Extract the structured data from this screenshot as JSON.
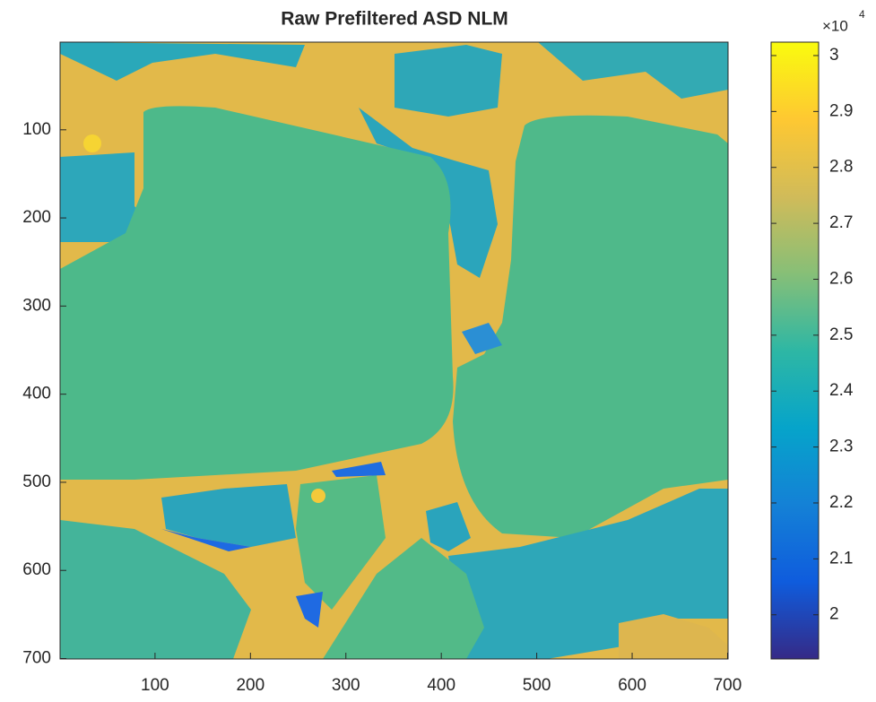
{
  "chart_data": {
    "type": "image",
    "title": "Raw Prefiltered ASD NLM",
    "xlim": [
      0.5,
      700.5
    ],
    "ylim": [
      700.5,
      0.5
    ],
    "y_reversed": true,
    "xticks": [
      100,
      200,
      300,
      400,
      500,
      600,
      700
    ],
    "yticks": [
      100,
      200,
      300,
      400,
      500,
      600,
      700
    ],
    "colormap": "parula",
    "clim": [
      19210,
      30240
    ],
    "colorbar_ticks": [
      {
        "value": 20000,
        "label": "2"
      },
      {
        "value": 21000,
        "label": "2.1"
      },
      {
        "value": 22000,
        "label": "2.2"
      },
      {
        "value": 23000,
        "label": "2.3"
      },
      {
        "value": 24000,
        "label": "2.4"
      },
      {
        "value": 25000,
        "label": "2.5"
      },
      {
        "value": 26000,
        "label": "2.6"
      },
      {
        "value": 27000,
        "label": "2.7"
      },
      {
        "value": 28000,
        "label": "2.8"
      },
      {
        "value": 29000,
        "label": "2.9"
      },
      {
        "value": 30000,
        "label": "3"
      }
    ],
    "colorbar_multiplier": "×10",
    "colorbar_exponent": "4"
  }
}
